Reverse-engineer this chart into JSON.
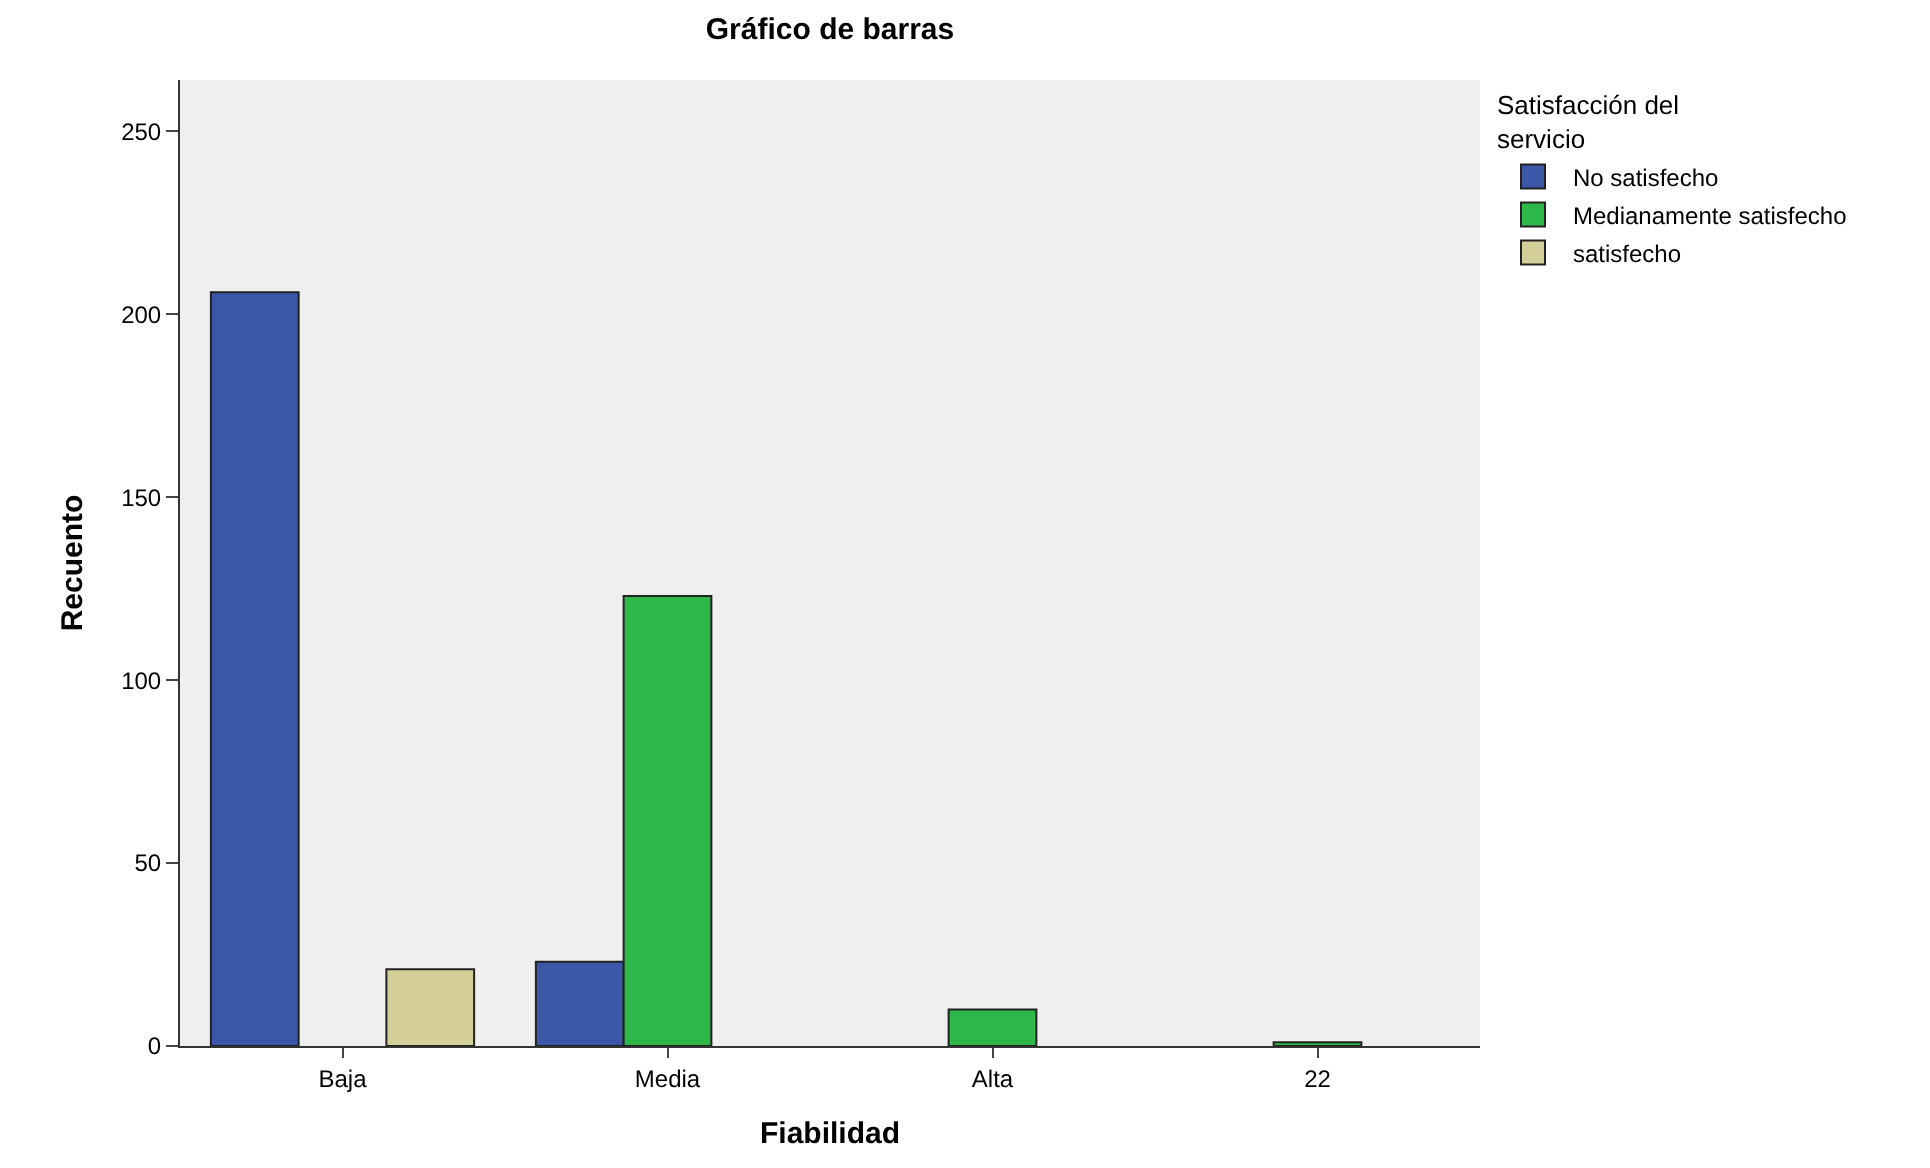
{
  "chart_data": {
    "type": "bar",
    "title": "Gráfico de barras",
    "xlabel": "Fiabilidad",
    "ylabel": "Recuento",
    "legend_title": "Satisfacción del servicio",
    "categories": [
      "Baja",
      "Media",
      "Alta",
      "22"
    ],
    "series": [
      {
        "name": "No satisfecho",
        "color": "#3c56a8",
        "values": [
          206,
          23,
          null,
          null
        ]
      },
      {
        "name": "Medianamente satisfecho",
        "color": "#2eb84a",
        "values": [
          null,
          123,
          10,
          1
        ]
      },
      {
        "name": "satisfecho",
        "color": "#d4cf98",
        "values": [
          21,
          null,
          null,
          null
        ]
      }
    ],
    "ylim": [
      0,
      264
    ],
    "yticks": [
      0,
      50,
      100,
      150,
      200,
      250
    ],
    "grid": false,
    "legend": "top right"
  }
}
